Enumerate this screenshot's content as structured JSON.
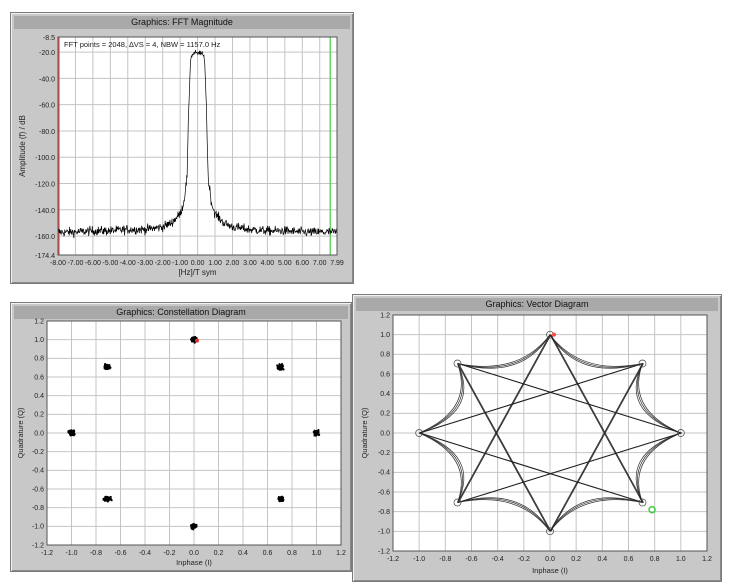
{
  "panels": {
    "fft": {
      "title": "Graphics: FFT Magnitude"
    },
    "constellation": {
      "title": "Graphics: Constellation Diagram"
    },
    "vector": {
      "title": "Graphics: Vector Diagram"
    }
  },
  "chart_data": [
    {
      "type": "line",
      "title": "Graphics: FFT Magnitude",
      "annotation": "FFT points = 2048, ∆VS = 4, NBW = 1157.0 Hz",
      "xlabel": "[Hz]/T sym",
      "ylabel": "Amplitude (f) / dB",
      "xlim": [
        -8.0,
        7.99
      ],
      "ylim": [
        -174.4,
        -8.5
      ],
      "x_ticks": [
        "-8.00",
        "-7.00",
        "-6.00",
        "-5.00",
        "-4.00",
        "-3.00",
        "-2.00",
        "-1.00",
        "0.00",
        "1.00",
        "2.00",
        "3.00",
        "4.00",
        "5.00",
        "6.00",
        "7.00",
        "7.99"
      ],
      "y_ticks": [
        "-8.5",
        "-20.0",
        "-40.0",
        "-60.0",
        "-80.0",
        "-100.0",
        "-120.0",
        "-140.0",
        "-160.0",
        "-174.4"
      ],
      "grid": true,
      "markers": [
        {
          "x": -8.0,
          "color": "#ff4444"
        },
        {
          "x": 7.6,
          "color": "#44cc44"
        }
      ],
      "series": [
        {
          "x": [
            -8.0,
            -7.0,
            -6.0,
            -5.0,
            -4.0,
            -3.0,
            -2.0,
            -1.5,
            -1.0,
            -0.8,
            -0.6,
            -0.5,
            -0.4,
            -0.3,
            -0.2,
            -0.1,
            0.0,
            0.1,
            0.2,
            0.3,
            0.4,
            0.5,
            0.6,
            0.8,
            1.0,
            1.5,
            2.0,
            3.0,
            4.0,
            5.0,
            6.0,
            7.0,
            7.99
          ],
          "y": [
            -157,
            -157,
            -156,
            -156,
            -155,
            -155,
            -153,
            -150,
            -143,
            -135,
            -115,
            -60,
            -25,
            -22,
            -21,
            -20,
            -22,
            -20,
            -21,
            -22,
            -25,
            -60,
            -115,
            -135,
            -143,
            -150,
            -153,
            -155,
            -156,
            -156,
            -157,
            -157,
            -157
          ]
        }
      ]
    },
    {
      "type": "scatter",
      "title": "Graphics: Constellation Diagram",
      "xlabel": "Inphase (I)",
      "ylabel": "Quadrature (Q)",
      "xlim": [
        -1.2,
        1.2
      ],
      "ylim": [
        -1.2,
        1.2
      ],
      "x_ticks": [
        "-1.2",
        "-1.0",
        "-0.8",
        "-0.6",
        "-0.4",
        "-0.2",
        "0.0",
        "0.2",
        "0.4",
        "0.6",
        "0.8",
        "1.0",
        "1.2"
      ],
      "y_ticks": [
        "1.2",
        "1.0",
        "0.8",
        "0.6",
        "0.4",
        "0.2",
        "0.0",
        "-0.2",
        "-0.4",
        "-0.6",
        "-0.8",
        "-1.0",
        "-1.2"
      ],
      "grid": true,
      "points": [
        {
          "x": 0.0,
          "y": 1.0,
          "color": "#000000"
        },
        {
          "x": 0.707,
          "y": 0.707,
          "color": "#000000"
        },
        {
          "x": 1.0,
          "y": 0.0,
          "color": "#000000"
        },
        {
          "x": 0.707,
          "y": -0.707,
          "color": "#2e7d32"
        },
        {
          "x": 0.0,
          "y": -1.0,
          "color": "#000000"
        },
        {
          "x": -0.707,
          "y": -0.707,
          "color": "#000000"
        },
        {
          "x": -1.0,
          "y": 0.0,
          "color": "#000000"
        },
        {
          "x": -0.707,
          "y": 0.707,
          "color": "#000000"
        }
      ]
    },
    {
      "type": "line",
      "title": "Graphics: Vector Diagram",
      "xlabel": "Inphase (I)",
      "ylabel": "Quadrature (Q)",
      "xlim": [
        -1.2,
        1.2
      ],
      "ylim": [
        -1.2,
        1.2
      ],
      "x_ticks": [
        "-1.2",
        "-1.0",
        "-0.8",
        "-0.6",
        "-0.4",
        "-0.2",
        "0.0",
        "0.2",
        "0.4",
        "0.6",
        "0.8",
        "1.0",
        "1.2"
      ],
      "y_ticks": [
        "1.2",
        "1.0",
        "0.8",
        "0.6",
        "0.4",
        "0.2",
        "0.0",
        "-0.2",
        "-0.4",
        "-0.6",
        "-0.8",
        "-1.0",
        "-1.2"
      ],
      "grid": true,
      "constellation_points": [
        {
          "x": 0.0,
          "y": 1.0
        },
        {
          "x": 0.707,
          "y": 0.707
        },
        {
          "x": 1.0,
          "y": 0.0
        },
        {
          "x": 0.707,
          "y": -0.707
        },
        {
          "x": 0.0,
          "y": -1.0
        },
        {
          "x": -0.707,
          "y": -0.707
        },
        {
          "x": -1.0,
          "y": 0.0
        },
        {
          "x": -0.707,
          "y": 0.707
        }
      ],
      "start_marker": {
        "x": 0.0,
        "y": 1.0,
        "color": "#ff4444"
      },
      "end_marker": {
        "x": 0.78,
        "y": -0.78,
        "color": "#44cc44"
      }
    }
  ]
}
